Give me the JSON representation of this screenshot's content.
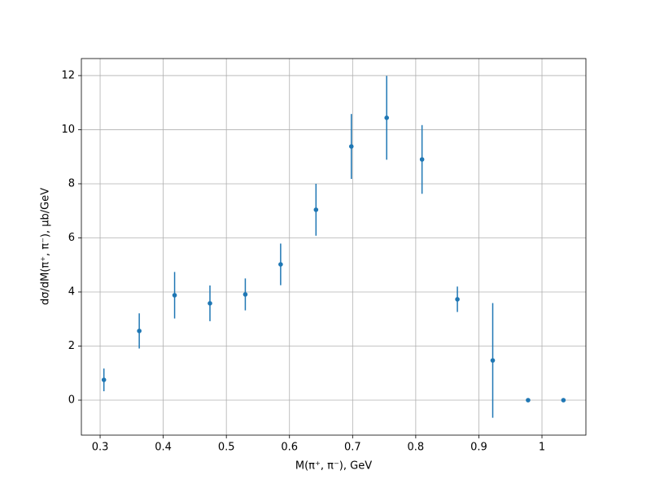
{
  "chart_data": {
    "type": "errorbar",
    "xlabel": "M(π⁺, π⁻), GeV",
    "ylabel": "dσ/dM(π⁺, π⁻), μb/GeV",
    "x": [
      0.306,
      0.362,
      0.418,
      0.474,
      0.53,
      0.586,
      0.642,
      0.698,
      0.754,
      0.81,
      0.866,
      0.922,
      0.978,
      1.034
    ],
    "values": [
      0.75,
      2.56,
      3.88,
      3.58,
      3.91,
      5.02,
      7.04,
      9.38,
      10.44,
      8.9,
      3.73,
      1.47,
      0,
      0
    ],
    "errors": [
      0.42,
      0.65,
      0.86,
      0.66,
      0.59,
      0.77,
      0.96,
      1.2,
      1.55,
      1.27,
      0.47,
      2.12,
      0,
      0
    ],
    "color": "#1f77b4",
    "xlim": [
      0.2703,
      1.0696
    ],
    "ylim": [
      -1.293,
      12.63
    ],
    "xticks": [
      0.3,
      0.4,
      0.5,
      0.6,
      0.7,
      0.8,
      0.9,
      1.0
    ],
    "yticks": [
      0,
      2,
      4,
      6,
      8,
      10,
      12
    ],
    "grid": true
  }
}
